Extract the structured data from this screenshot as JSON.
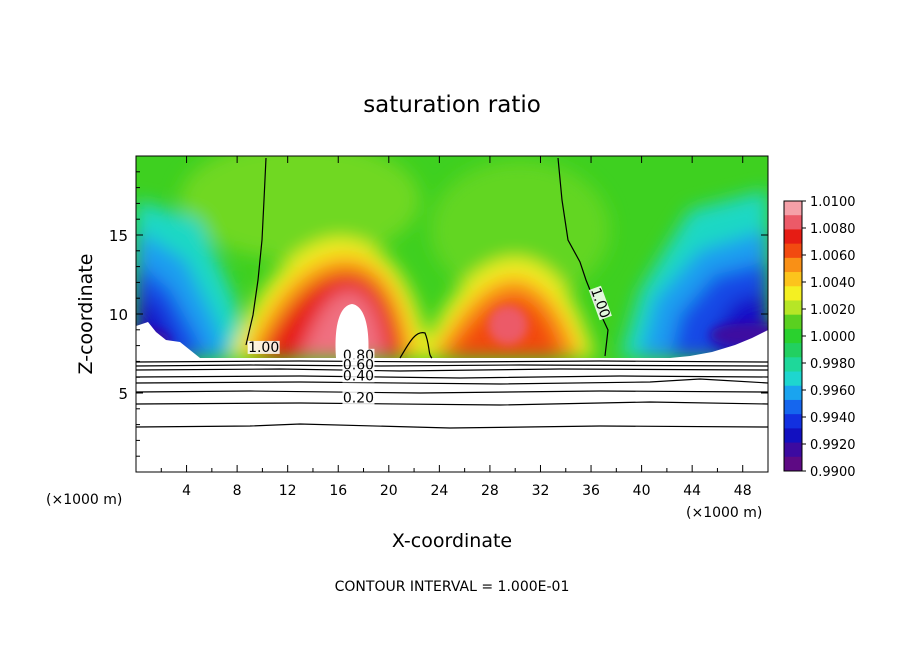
{
  "chart_data": {
    "type": "heatmap",
    "title": "saturation ratio",
    "xlabel": "X-coordinate",
    "ylabel": "Z-coordinate",
    "x_unit_left": "(×1000 m)",
    "x_unit_right": "(×1000 m)",
    "xlim": [
      0,
      50
    ],
    "ylim": [
      0,
      20
    ],
    "x_ticks": [
      4,
      8,
      12,
      16,
      20,
      24,
      28,
      32,
      36,
      40,
      44,
      48
    ],
    "x_tick_labels": [
      "4",
      "8",
      "12",
      "16",
      "20",
      "24",
      "28",
      "32",
      "36",
      "40",
      "44",
      "48"
    ],
    "y_ticks": [
      5,
      10,
      15
    ],
    "y_tick_labels": [
      "5",
      "10",
      "15"
    ],
    "colorbar": {
      "min": 0.99,
      "max": 1.01,
      "labels": [
        "1.0100",
        "1.0080",
        "1.0060",
        "1.0040",
        "1.0020",
        "1.0000",
        "0.9980",
        "0.9960",
        "0.9940",
        "0.9920",
        "0.9900"
      ],
      "colors": [
        "#f5a0a8",
        "#ec5a68",
        "#e61c14",
        "#f24a10",
        "#f99016",
        "#fcc41c",
        "#f4f022",
        "#b6e626",
        "#5ad020",
        "#2ad12e",
        "#22d060",
        "#1ed89a",
        "#1ed6cf",
        "#1aa4ef",
        "#1566ee",
        "#1230e0",
        "#1210c0",
        "#3c0aa0",
        "#5e0a84"
      ]
    },
    "contour_labels": [
      {
        "text": "1.00",
        "x": 10.1,
        "z": 7.6
      },
      {
        "text": "1.00",
        "x": 36.4,
        "z": 10.6
      },
      {
        "text": "0.80",
        "x": 17.6,
        "z": 7.1
      },
      {
        "text": "0.60",
        "x": 17.6,
        "z": 6.5
      },
      {
        "text": "0.40",
        "x": 17.6,
        "z": 5.8
      },
      {
        "text": "0.20",
        "x": 17.6,
        "z": 4.4
      }
    ],
    "footer": "CONTOUR INTERVAL = 1.000E-01"
  }
}
